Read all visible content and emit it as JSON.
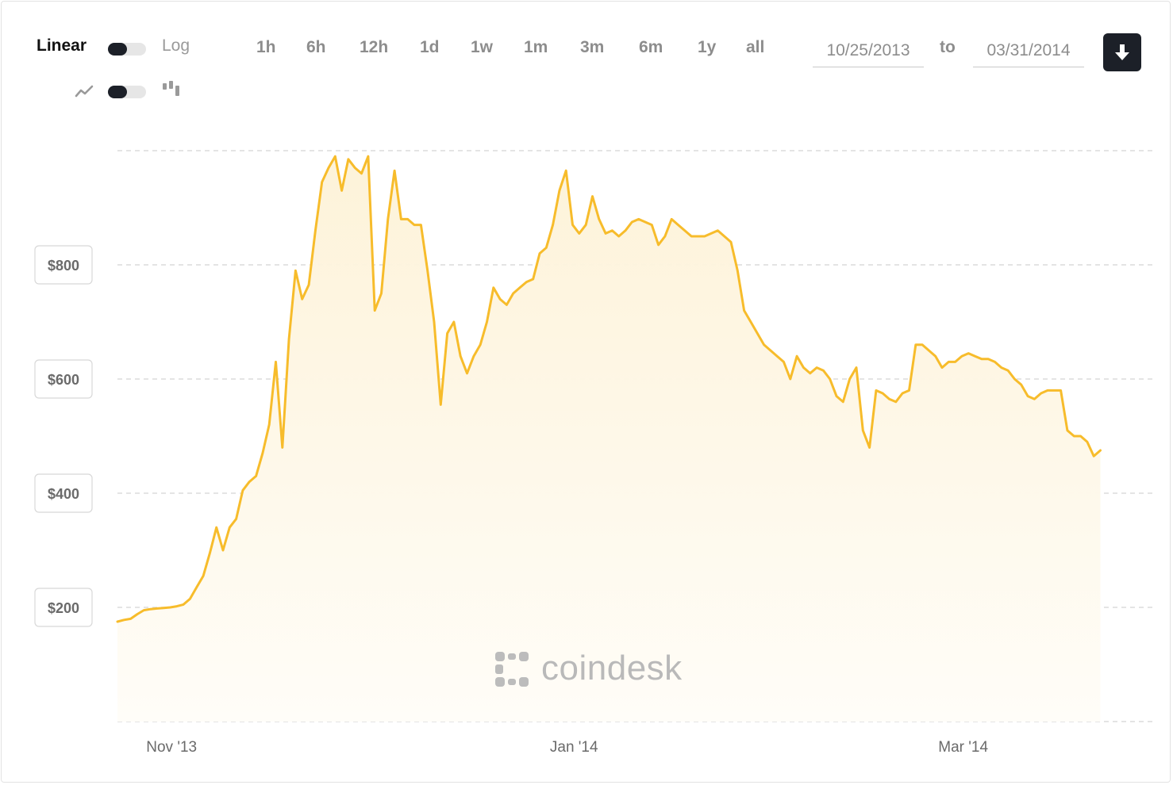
{
  "controls": {
    "scale_linear_label": "Linear",
    "scale_log_label": "Log",
    "ranges": [
      "1h",
      "6h",
      "12h",
      "1d",
      "1w",
      "1m",
      "3m",
      "6m",
      "1y",
      "all"
    ],
    "date_from": "10/25/2013",
    "to_label": "to",
    "date_to": "03/31/2014",
    "icons": {
      "line_type": "line-chart-icon",
      "candle_type": "candlestick-icon",
      "download": "download-icon"
    }
  },
  "watermark": {
    "text": "coindesk",
    "icon": "coindesk-logo-icon"
  },
  "colors": {
    "line": "#f7bc2b",
    "fill_top": "#fdf2d7",
    "fill_bottom": "#fffdf8",
    "grid": "#dcdcdc"
  },
  "chart_data": {
    "type": "area",
    "title": "",
    "xlabel": "",
    "ylabel": "",
    "xlim": [
      "2013-10-25",
      "2014-03-31"
    ],
    "ylim": [
      0,
      1000
    ],
    "y_ticks": [
      200,
      400,
      600,
      800
    ],
    "y_tick_labels": [
      "$200",
      "$400",
      "$600",
      "$800"
    ],
    "x_ticks": [
      "2013-11-01",
      "2014-01-01",
      "2014-03-01"
    ],
    "x_tick_labels": [
      "Nov '13",
      "Jan '14",
      "Mar '14"
    ],
    "grid": true,
    "legend": "none",
    "series": [
      {
        "values": [
          [
            "2013-10-25",
            175
          ],
          [
            "2013-10-26",
            178
          ],
          [
            "2013-10-27",
            180
          ],
          [
            "2013-10-28",
            188
          ],
          [
            "2013-10-29",
            195
          ],
          [
            "2013-10-30",
            197
          ],
          [
            "2013-10-31",
            198
          ],
          [
            "2013-11-01",
            199
          ],
          [
            "2013-11-02",
            200
          ],
          [
            "2013-11-03",
            202
          ],
          [
            "2013-11-04",
            205
          ],
          [
            "2013-11-05",
            215
          ],
          [
            "2013-11-06",
            235
          ],
          [
            "2013-11-07",
            255
          ],
          [
            "2013-11-08",
            295
          ],
          [
            "2013-11-09",
            340
          ],
          [
            "2013-11-10",
            300
          ],
          [
            "2013-11-11",
            340
          ],
          [
            "2013-11-12",
            355
          ],
          [
            "2013-11-13",
            405
          ],
          [
            "2013-11-14",
            420
          ],
          [
            "2013-11-15",
            430
          ],
          [
            "2013-11-16",
            470
          ],
          [
            "2013-11-17",
            520
          ],
          [
            "2013-11-18",
            630
          ],
          [
            "2013-11-19",
            480
          ],
          [
            "2013-11-20",
            670
          ],
          [
            "2013-11-21",
            790
          ],
          [
            "2013-11-22",
            740
          ],
          [
            "2013-11-23",
            765
          ],
          [
            "2013-11-24",
            860
          ],
          [
            "2013-11-25",
            945
          ],
          [
            "2013-11-26",
            970
          ],
          [
            "2013-11-27",
            990
          ],
          [
            "2013-11-28",
            930
          ],
          [
            "2013-11-29",
            985
          ],
          [
            "2013-11-30",
            970
          ],
          [
            "2013-12-01",
            960
          ],
          [
            "2013-12-02",
            990
          ],
          [
            "2013-12-03",
            720
          ],
          [
            "2013-12-04",
            750
          ],
          [
            "2013-12-05",
            880
          ],
          [
            "2013-12-06",
            965
          ],
          [
            "2013-12-07",
            880
          ],
          [
            "2013-12-08",
            880
          ],
          [
            "2013-12-09",
            870
          ],
          [
            "2013-12-10",
            870
          ],
          [
            "2013-12-11",
            790
          ],
          [
            "2013-12-12",
            700
          ],
          [
            "2013-12-13",
            555
          ],
          [
            "2013-12-14",
            680
          ],
          [
            "2013-12-15",
            700
          ],
          [
            "2013-12-16",
            640
          ],
          [
            "2013-12-17",
            610
          ],
          [
            "2013-12-18",
            640
          ],
          [
            "2013-12-19",
            660
          ],
          [
            "2013-12-20",
            700
          ],
          [
            "2013-12-21",
            760
          ],
          [
            "2013-12-22",
            740
          ],
          [
            "2013-12-23",
            730
          ],
          [
            "2013-12-24",
            750
          ],
          [
            "2013-12-25",
            760
          ],
          [
            "2013-12-26",
            770
          ],
          [
            "2013-12-27",
            775
          ],
          [
            "2013-12-28",
            820
          ],
          [
            "2013-12-29",
            830
          ],
          [
            "2013-12-30",
            870
          ],
          [
            "2013-12-31",
            930
          ],
          [
            "2014-01-01",
            965
          ],
          [
            "2014-01-02",
            870
          ],
          [
            "2014-01-03",
            855
          ],
          [
            "2014-01-04",
            870
          ],
          [
            "2014-01-05",
            920
          ],
          [
            "2014-01-06",
            880
          ],
          [
            "2014-01-07",
            855
          ],
          [
            "2014-01-08",
            860
          ],
          [
            "2014-01-09",
            850
          ],
          [
            "2014-01-10",
            860
          ],
          [
            "2014-01-11",
            875
          ],
          [
            "2014-01-12",
            880
          ],
          [
            "2014-01-13",
            875
          ],
          [
            "2014-01-14",
            870
          ],
          [
            "2014-01-15",
            835
          ],
          [
            "2014-01-16",
            850
          ],
          [
            "2014-01-17",
            880
          ],
          [
            "2014-01-18",
            870
          ],
          [
            "2014-01-19",
            860
          ],
          [
            "2014-01-20",
            850
          ],
          [
            "2014-01-21",
            850
          ],
          [
            "2014-01-22",
            850
          ],
          [
            "2014-01-23",
            855
          ],
          [
            "2014-01-24",
            860
          ],
          [
            "2014-01-25",
            850
          ],
          [
            "2014-01-26",
            840
          ],
          [
            "2014-01-27",
            790
          ],
          [
            "2014-01-28",
            720
          ],
          [
            "2014-01-29",
            700
          ],
          [
            "2014-01-30",
            680
          ],
          [
            "2014-01-31",
            660
          ],
          [
            "2014-02-01",
            650
          ],
          [
            "2014-02-02",
            640
          ],
          [
            "2014-02-03",
            630
          ],
          [
            "2014-02-04",
            600
          ],
          [
            "2014-02-05",
            640
          ],
          [
            "2014-02-06",
            620
          ],
          [
            "2014-02-07",
            610
          ],
          [
            "2014-02-08",
            620
          ],
          [
            "2014-02-09",
            615
          ],
          [
            "2014-02-10",
            600
          ],
          [
            "2014-02-11",
            570
          ],
          [
            "2014-02-12",
            560
          ],
          [
            "2014-02-13",
            600
          ],
          [
            "2014-02-14",
            620
          ],
          [
            "2014-02-15",
            510
          ],
          [
            "2014-02-16",
            480
          ],
          [
            "2014-02-17",
            580
          ],
          [
            "2014-02-18",
            575
          ],
          [
            "2014-02-19",
            565
          ],
          [
            "2014-02-20",
            560
          ],
          [
            "2014-02-21",
            575
          ],
          [
            "2014-02-22",
            580
          ],
          [
            "2014-02-23",
            660
          ],
          [
            "2014-02-24",
            660
          ],
          [
            "2014-02-25",
            650
          ],
          [
            "2014-02-26",
            640
          ],
          [
            "2014-02-27",
            620
          ],
          [
            "2014-02-28",
            630
          ],
          [
            "2014-03-01",
            630
          ],
          [
            "2014-03-02",
            640
          ],
          [
            "2014-03-03",
            645
          ],
          [
            "2014-03-04",
            640
          ],
          [
            "2014-03-05",
            635
          ],
          [
            "2014-03-06",
            635
          ],
          [
            "2014-03-07",
            630
          ],
          [
            "2014-03-08",
            620
          ],
          [
            "2014-03-09",
            615
          ],
          [
            "2014-03-10",
            600
          ],
          [
            "2014-03-11",
            590
          ],
          [
            "2014-03-12",
            570
          ],
          [
            "2014-03-13",
            565
          ],
          [
            "2014-03-14",
            575
          ],
          [
            "2014-03-15",
            580
          ],
          [
            "2014-03-16",
            580
          ],
          [
            "2014-03-17",
            580
          ],
          [
            "2014-03-18",
            510
          ],
          [
            "2014-03-19",
            500
          ],
          [
            "2014-03-20",
            500
          ],
          [
            "2014-03-21",
            490
          ],
          [
            "2014-03-22",
            465
          ],
          [
            "2014-03-23",
            475
          ]
        ]
      }
    ]
  }
}
